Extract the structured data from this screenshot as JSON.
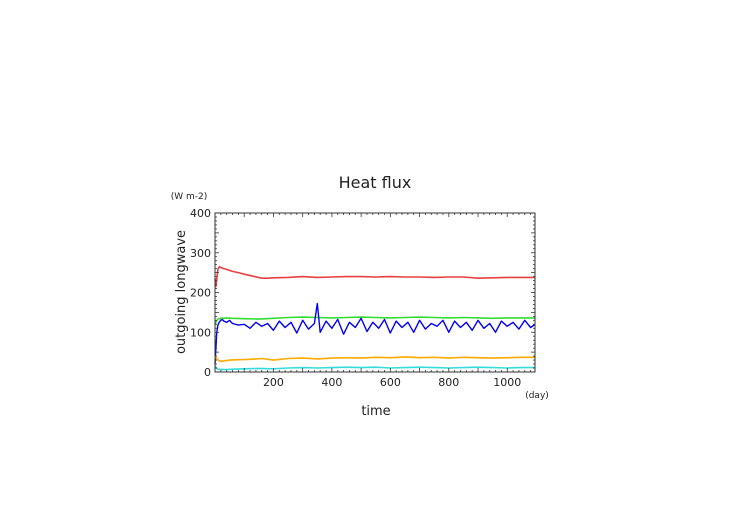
{
  "chart_data": {
    "type": "line",
    "title": "Heat flux",
    "xlabel": "time",
    "ylabel": "outgoing longwave",
    "x_unit": "(day)",
    "y_unit": "(W m-2)",
    "xlim": [
      0,
      1095
    ],
    "ylim": [
      0,
      400
    ],
    "x_ticks": [
      200,
      400,
      600,
      800,
      1000
    ],
    "y_ticks": [
      0,
      100,
      200,
      300,
      400
    ],
    "x_tick_labels": [
      "200",
      "400",
      "600",
      "800",
      "1000"
    ],
    "y_tick_labels": [
      "0",
      "100",
      "200",
      "300",
      "400"
    ],
    "grid": false,
    "legend": "none",
    "series": [
      {
        "color": "#e84040",
        "x": [
          0,
          3,
          6,
          10,
          15,
          20,
          30,
          40,
          60,
          80,
          100,
          130,
          160,
          180,
          200,
          250,
          300,
          350,
          400,
          450,
          500,
          550,
          600,
          650,
          700,
          750,
          800,
          850,
          900,
          950,
          1000,
          1050,
          1095
        ],
        "y": [
          235,
          215,
          235,
          258,
          265,
          263,
          260,
          258,
          253,
          250,
          246,
          241,
          236,
          236,
          237,
          238,
          240,
          238,
          239,
          240,
          240,
          239,
          240,
          239,
          239,
          238,
          239,
          239,
          236,
          237,
          238,
          238,
          238
        ]
      },
      {
        "color": "#33dd33",
        "x": [
          0,
          5,
          10,
          20,
          40,
          60,
          100,
          150,
          200,
          250,
          300,
          350,
          400,
          450,
          500,
          550,
          600,
          650,
          700,
          750,
          800,
          850,
          900,
          950,
          1000,
          1050,
          1095
        ],
        "y": [
          120,
          128,
          133,
          135,
          136,
          135,
          134,
          133,
          135,
          137,
          138,
          137,
          136,
          137,
          138,
          137,
          136,
          137,
          138,
          137,
          136,
          137,
          136,
          135,
          136,
          136,
          136
        ]
      },
      {
        "color": "#0000ee",
        "x": [
          0,
          3,
          6,
          10,
          15,
          20,
          25,
          30,
          40,
          50,
          60,
          80,
          100,
          120,
          140,
          160,
          180,
          200,
          220,
          240,
          260,
          280,
          300,
          320,
          340,
          350,
          360,
          380,
          400,
          420,
          440,
          460,
          480,
          500,
          520,
          540,
          560,
          580,
          600,
          620,
          640,
          660,
          680,
          700,
          720,
          740,
          760,
          780,
          800,
          820,
          840,
          860,
          880,
          900,
          920,
          940,
          960,
          980,
          1000,
          1020,
          1040,
          1060,
          1080,
          1095
        ],
        "y": [
          20,
          60,
          100,
          118,
          126,
          130,
          132,
          128,
          125,
          130,
          122,
          118,
          120,
          110,
          125,
          115,
          122,
          105,
          128,
          112,
          125,
          98,
          130,
          108,
          122,
          172,
          100,
          128,
          110,
          132,
          95,
          125,
          112,
          135,
          102,
          125,
          110,
          132,
          98,
          128,
          112,
          125,
          100,
          130,
          108,
          122,
          115,
          130,
          100,
          128,
          112,
          125,
          105,
          130,
          110,
          122,
          100,
          128,
          115,
          125,
          108,
          130,
          112,
          120
        ]
      },
      {
        "color": "#ffaa00",
        "x": [
          0,
          5,
          10,
          15,
          20,
          30,
          50,
          80,
          120,
          160,
          200,
          250,
          300,
          350,
          400,
          450,
          500,
          550,
          600,
          650,
          700,
          750,
          800,
          850,
          900,
          950,
          1000,
          1050,
          1095
        ],
        "y": [
          40,
          35,
          30,
          28,
          27,
          28,
          30,
          31,
          32,
          34,
          30,
          34,
          35,
          33,
          35,
          36,
          35,
          37,
          36,
          38,
          36,
          37,
          35,
          37,
          36,
          35,
          36,
          37,
          37
        ]
      },
      {
        "color": "#33dddd",
        "x": [
          0,
          5,
          10,
          20,
          40,
          60,
          100,
          150,
          200,
          250,
          300,
          350,
          400,
          450,
          500,
          550,
          600,
          650,
          700,
          750,
          800,
          850,
          900,
          950,
          1000,
          1050,
          1095
        ],
        "y": [
          15,
          10,
          7,
          6,
          6,
          7,
          8,
          9,
          8,
          10,
          11,
          10,
          11,
          12,
          11,
          12,
          10,
          11,
          12,
          11,
          10,
          11,
          12,
          11,
          10,
          11,
          11
        ]
      }
    ]
  }
}
